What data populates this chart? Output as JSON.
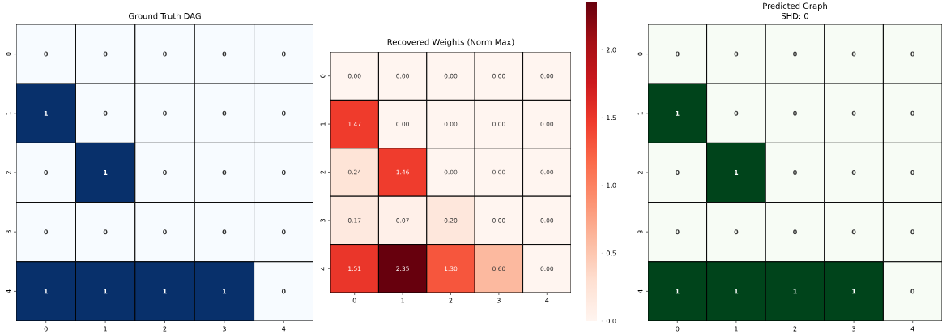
{
  "chart_data": [
    {
      "type": "heatmap",
      "title": "Ground Truth DAG",
      "categories": [
        "0",
        "1",
        "2",
        "3",
        "4"
      ],
      "y_categories": [
        "0",
        "1",
        "2",
        "3",
        "4"
      ],
      "cells": [
        [
          0,
          0,
          0,
          0,
          0
        ],
        [
          1,
          0,
          0,
          0,
          0
        ],
        [
          0,
          1,
          0,
          0,
          0
        ],
        [
          0,
          0,
          0,
          0,
          0
        ],
        [
          1,
          1,
          1,
          1,
          0
        ]
      ],
      "data_labels": true,
      "colors": [
        "#f7fbff",
        "#08306b"
      ]
    },
    {
      "type": "heatmap",
      "title": "Recovered Weights (Norm Max)",
      "categories": [
        "0",
        "1",
        "2",
        "3",
        "4"
      ],
      "y_categories": [
        "0",
        "1",
        "2",
        "3",
        "4"
      ],
      "cells": [
        [
          0,
          0,
          0,
          0,
          0
        ],
        [
          1.47,
          0,
          0,
          0,
          0
        ],
        [
          0.24,
          1.46,
          0,
          0,
          0
        ],
        [
          0.17,
          0.07,
          0.2,
          0,
          0
        ],
        [
          1.51,
          2.35,
          1.3,
          0.6,
          0
        ]
      ],
      "cell_labels": [
        [
          "0.00",
          "0.00",
          "0.00",
          "0.00",
          "0.00"
        ],
        [
          "1.47",
          "0.00",
          "0.00",
          "0.00",
          "0.00"
        ],
        [
          "0.24",
          "1.46",
          "0.00",
          "0.00",
          "0.00"
        ],
        [
          "0.17",
          "0.07",
          "0.20",
          "0.00",
          "0.00"
        ],
        [
          "1.51",
          "2.35",
          "1.30",
          "0.60",
          "0.00"
        ]
      ],
      "clim": [
        0,
        2.35
      ],
      "cticks": [
        {
          "value": 0,
          "label": "0.0"
        },
        {
          "value": 0.5,
          "label": "0.5"
        },
        {
          "value": 1,
          "label": "1.0"
        },
        {
          "value": 1.5,
          "label": "1.5"
        },
        {
          "value": 2,
          "label": "2.0"
        }
      ],
      "colors": [
        "#fff5f0",
        "#fee0d2",
        "#fcbba1",
        "#fc9272",
        "#fb6a4a",
        "#ef3b2c",
        "#cb181d",
        "#a50f15",
        "#67000d"
      ]
    },
    {
      "type": "heatmap",
      "title": "Predicted Graph",
      "subtitle": "SHD: 0",
      "categories": [
        "0",
        "1",
        "2",
        "3",
        "4"
      ],
      "y_categories": [
        "0",
        "1",
        "2",
        "3",
        "4"
      ],
      "cells": [
        [
          0,
          0,
          0,
          0,
          0
        ],
        [
          1,
          0,
          0,
          0,
          0
        ],
        [
          0,
          1,
          0,
          0,
          0
        ],
        [
          0,
          0,
          0,
          0,
          0
        ],
        [
          1,
          1,
          1,
          1,
          0
        ]
      ],
      "data_labels": true,
      "colors": [
        "#f7fcf5",
        "#00441b"
      ]
    }
  ]
}
